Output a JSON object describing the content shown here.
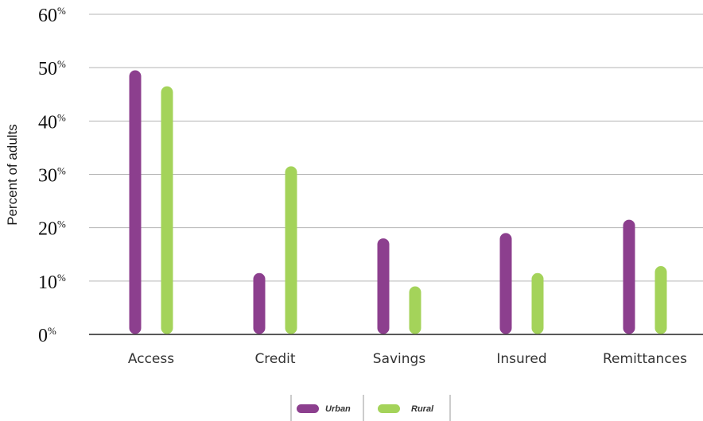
{
  "chart_data": {
    "type": "bar",
    "ylabel": "Percent of adults",
    "xlabel": "",
    "ylim": [
      0,
      60
    ],
    "yticks": [
      0,
      10,
      20,
      30,
      40,
      50,
      60
    ],
    "ytick_suffix": "%",
    "grid": true,
    "legend_position": "bottom-center",
    "categories": [
      "Access",
      "Credit",
      "Savings",
      "Insured",
      "Remittances"
    ],
    "series": [
      {
        "name": "Urban",
        "color": "#8c3f8e",
        "values": [
          49.5,
          11.5,
          18,
          19,
          21.5
        ]
      },
      {
        "name": "Rural",
        "color": "#a4d35a",
        "values": [
          46.5,
          31.5,
          9,
          11.5,
          12.8
        ]
      }
    ]
  }
}
